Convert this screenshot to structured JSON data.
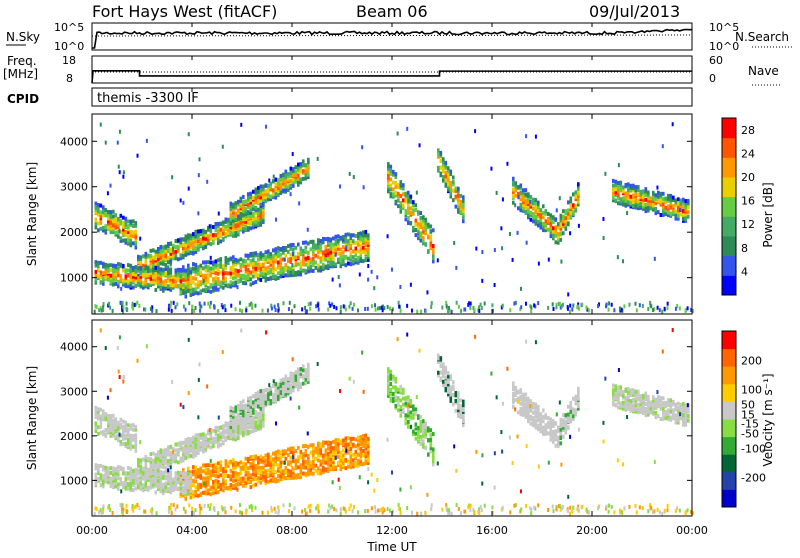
{
  "header": {
    "title": "Fort Hays West (fitACF)",
    "beam": "Beam 06",
    "date": "09/Jul/2013"
  },
  "top_panels": {
    "nsky_label": "N.Sky",
    "nsky_ticks": [
      "10^5",
      "10^0"
    ],
    "nsearch_label": "N.Search",
    "nsearch_ticks": [
      "10^5",
      "10^0"
    ],
    "freq_label": "Freq.",
    "freq_unit": "[MHz]",
    "freq_ticks": [
      "18",
      "8"
    ],
    "nave_label": "Nave",
    "nave_ticks": [
      "60",
      "0"
    ],
    "cpid_label": "CPID",
    "cpid_text": "themis -3300 IF"
  },
  "colors": {
    "power_scale": [
      "#0000ff",
      "#3355ee",
      "#2e8b57",
      "#44aa66",
      "#66cc44",
      "#e8d000",
      "#ff9900",
      "#ff5500",
      "#ff0000"
    ],
    "velocity_scale": [
      "#0000cc",
      "#2244aa",
      "#006633",
      "#33aa33",
      "#88dd44",
      "#c8c8c8",
      "#ffcc00",
      "#ff9900",
      "#ff6600",
      "#ff0000"
    ]
  },
  "chart_data": [
    {
      "type": "heatmap",
      "panel": "power",
      "ylabel": "Slant Range [km]",
      "yticks": [
        "1000",
        "2000",
        "3000",
        "4000"
      ],
      "ylim": [
        200,
        4600
      ],
      "xlim": [
        0,
        24
      ],
      "colorbar_label": "Power [dB]",
      "colorbar_ticks": [
        "4",
        "8",
        "12",
        "16",
        "20",
        "24",
        "28"
      ],
      "colorbar_range": [
        0,
        30
      ]
    },
    {
      "type": "heatmap",
      "panel": "velocity",
      "ylabel": "Slant Range [km]",
      "yticks": [
        "1000",
        "2000",
        "3000",
        "4000"
      ],
      "ylim": [
        200,
        4600
      ],
      "xlabel": "Time UT",
      "xticks": [
        "00:00",
        "04:00",
        "08:00",
        "12:00",
        "16:00",
        "20:00",
        "00:00"
      ],
      "xlim": [
        0,
        24
      ],
      "colorbar_label": "Velocity [m s⁻¹]",
      "colorbar_ticks": [
        "200",
        "100",
        "50",
        "15",
        "-15",
        "-50",
        "-100",
        "-200"
      ],
      "colorbar_range": [
        -300,
        300
      ]
    }
  ]
}
